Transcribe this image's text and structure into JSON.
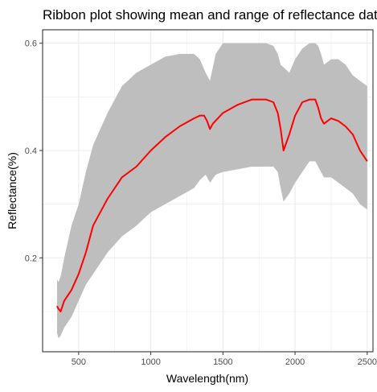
{
  "chart_data": {
    "type": "area",
    "title": "Ribbon plot showing mean and range of reflectance data",
    "xlabel": "Wavelength(nm)",
    "ylabel": "Reflectance(%)",
    "xlim": [
      250,
      2540
    ],
    "ylim": [
      0.025,
      0.625
    ],
    "x_ticks": [
      500,
      1000,
      1500,
      2000,
      2500
    ],
    "y_ticks": [
      0.2,
      0.4,
      0.6
    ],
    "x_tick_labels": [
      "500",
      "1000",
      "1500",
      "2000",
      "2500"
    ],
    "y_tick_labels": [
      "0.2",
      "0.4",
      "0.6"
    ],
    "grid": true,
    "legend": "none",
    "colors": {
      "ribbon": "#bebebe",
      "mean": "#ff0000",
      "panel_border": "#333333",
      "grid": "#ebebeb"
    },
    "series": [
      {
        "role": "range",
        "x": [
          350,
          360,
          375,
          400,
          450,
          500,
          550,
          600,
          700,
          800,
          900,
          1000,
          1100,
          1200,
          1300,
          1340,
          1380,
          1410,
          1450,
          1500,
          1600,
          1700,
          1800,
          1850,
          1880,
          1900,
          1920,
          1960,
          2000,
          2050,
          2100,
          2140,
          2160,
          2180,
          2200,
          2250,
          2300,
          2350,
          2400,
          2450,
          2500
        ],
        "upper": [
          0.16,
          0.155,
          0.165,
          0.2,
          0.26,
          0.3,
          0.36,
          0.41,
          0.47,
          0.52,
          0.545,
          0.56,
          0.575,
          0.58,
          0.58,
          0.57,
          0.545,
          0.53,
          0.58,
          0.6,
          0.6,
          0.6,
          0.6,
          0.595,
          0.58,
          0.56,
          0.555,
          0.545,
          0.57,
          0.59,
          0.6,
          0.6,
          0.595,
          0.58,
          0.56,
          0.57,
          0.57,
          0.56,
          0.54,
          0.53,
          0.52
        ],
        "lower": [
          0.06,
          0.05,
          0.055,
          0.07,
          0.09,
          0.12,
          0.15,
          0.17,
          0.21,
          0.24,
          0.26,
          0.285,
          0.3,
          0.315,
          0.33,
          0.345,
          0.355,
          0.34,
          0.355,
          0.36,
          0.365,
          0.37,
          0.37,
          0.37,
          0.36,
          0.33,
          0.305,
          0.32,
          0.34,
          0.36,
          0.38,
          0.38,
          0.37,
          0.36,
          0.35,
          0.35,
          0.34,
          0.33,
          0.32,
          0.3,
          0.29
        ]
      },
      {
        "role": "mean",
        "x": [
          350,
          360,
          375,
          400,
          450,
          500,
          550,
          600,
          700,
          800,
          900,
          1000,
          1100,
          1200,
          1300,
          1340,
          1370,
          1390,
          1410,
          1430,
          1500,
          1600,
          1700,
          1800,
          1850,
          1880,
          1900,
          1920,
          1960,
          2000,
          2050,
          2100,
          2140,
          2160,
          2180,
          2200,
          2250,
          2300,
          2350,
          2400,
          2450,
          2500
        ],
        "values": [
          0.11,
          0.105,
          0.1,
          0.12,
          0.14,
          0.17,
          0.21,
          0.26,
          0.31,
          0.35,
          0.37,
          0.4,
          0.425,
          0.445,
          0.46,
          0.465,
          0.465,
          0.455,
          0.44,
          0.45,
          0.47,
          0.485,
          0.495,
          0.495,
          0.49,
          0.47,
          0.44,
          0.4,
          0.43,
          0.465,
          0.49,
          0.495,
          0.495,
          0.48,
          0.46,
          0.45,
          0.46,
          0.455,
          0.445,
          0.43,
          0.4,
          0.38
        ]
      }
    ]
  }
}
